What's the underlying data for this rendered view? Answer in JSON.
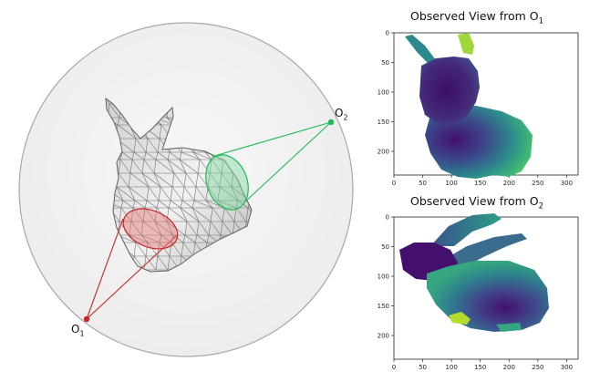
{
  "observers": [
    {
      "letter": "O",
      "index": "1",
      "color": "#c62828"
    },
    {
      "letter": "O",
      "index": "2",
      "color": "#1db954"
    }
  ],
  "panels": [
    {
      "title": "Observed View from O",
      "title_sub": "1",
      "x_ticks": [
        "0",
        "50",
        "100",
        "150",
        "200",
        "250",
        "300"
      ],
      "y_ticks": [
        "0",
        "50",
        "100",
        "150",
        "200"
      ]
    },
    {
      "title": "Observed View from O",
      "title_sub": "2",
      "x_ticks": [
        "0",
        "50",
        "100",
        "150",
        "200",
        "250",
        "300"
      ],
      "y_ticks": [
        "0",
        "50",
        "100",
        "150",
        "200"
      ]
    }
  ],
  "colors": {
    "sphere_fill": "#f2f2f2",
    "sphere_stroke": "#a8a8a8",
    "mesh_fill": "#e4e4e4",
    "mesh_stroke": "#6f6f6f",
    "depth_near": "#44106e",
    "depth_mid": "#2c8a8c",
    "depth_far": "#b5dc2d"
  }
}
